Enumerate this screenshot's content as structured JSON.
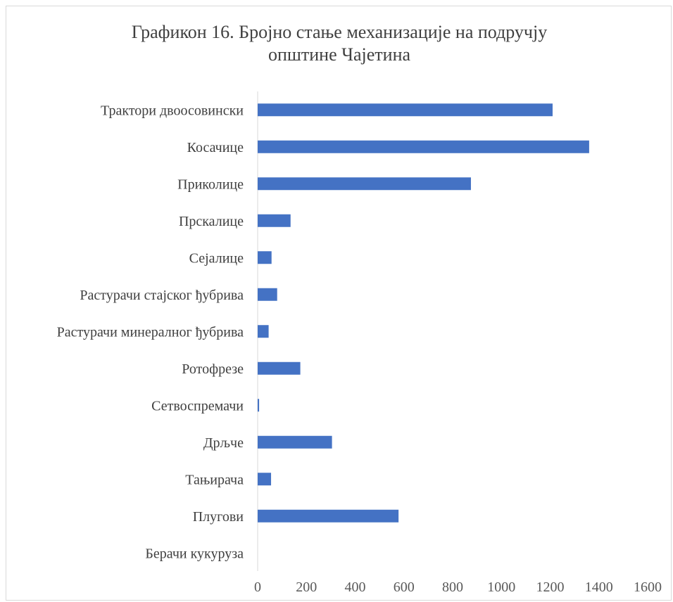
{
  "chart_data": {
    "type": "bar",
    "orientation": "horizontal",
    "title_line1": "Графикон 16. Бројно стање механизације на подручју",
    "title_line2": "општине Чајетина",
    "categories": [
      "Трактори двоосовински",
      "Косачице",
      "Приколице",
      "Прскалице",
      "Сејалице",
      "Растурачи стајског ђубрива",
      "Растурачи минералног ђубрива",
      "Ротофрезе",
      "Сетвоспремачи",
      "Дрљче",
      "Тањирача",
      "Плугови",
      "Берачи кукуруза"
    ],
    "values": [
      1210,
      1360,
      875,
      135,
      57,
      80,
      45,
      175,
      6,
      305,
      55,
      578,
      0
    ],
    "xlim": [
      0,
      1600
    ],
    "xticks": [
      "0",
      "200",
      "400",
      "600",
      "800",
      "1000",
      "1200",
      "1400",
      "1600"
    ],
    "grid": false,
    "legend": "none",
    "bar_color": "#4472c4",
    "axis_color": "#d9d9d9"
  }
}
